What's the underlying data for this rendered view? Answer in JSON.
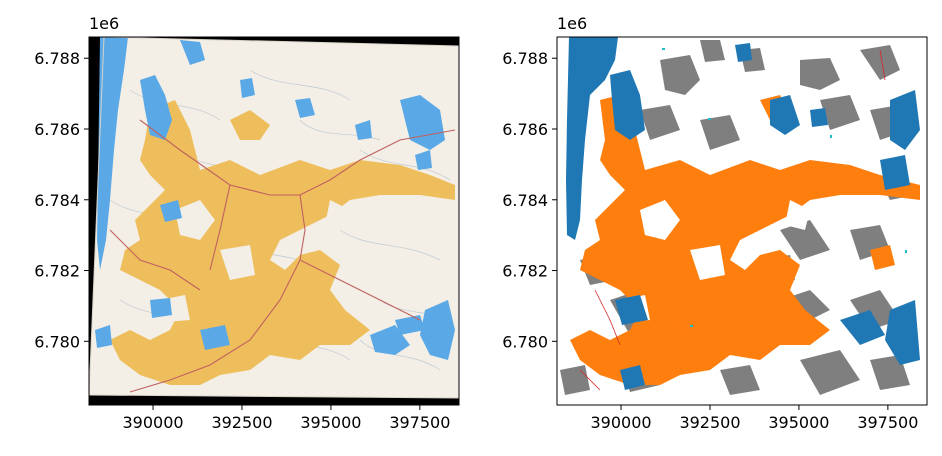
{
  "chart_data": [
    {
      "type": "heatmap",
      "description_role": "scanned topographic map raster",
      "x_ticks": [
        390000,
        392500,
        395000,
        397500
      ],
      "x_tick_labels": [
        "390000",
        "392500",
        "395000",
        "397500"
      ],
      "y_ticks": [
        6780000,
        6782000,
        6784000,
        6786000,
        6788000
      ],
      "y_tick_labels": [
        "6.780",
        "6.782",
        "6.784",
        "6.786",
        "6.788"
      ],
      "y_offset_label": "1e6",
      "xlim": [
        388200,
        398600
      ],
      "ylim": [
        6778200,
        6788600
      ],
      "grid": false,
      "colors": {
        "background": "#000000",
        "paper": "#f3eee6",
        "water": "#5aa9e6",
        "urban": "#efbe5c",
        "roads": "#c06060",
        "contours": "#a9bccc"
      }
    },
    {
      "type": "heatmap",
      "description_role": "classified land cover raster",
      "x_ticks": [
        390000,
        392500,
        395000,
        397500
      ],
      "x_tick_labels": [
        "390000",
        "392500",
        "395000",
        "397500"
      ],
      "y_ticks": [
        6780000,
        6782000,
        6784000,
        6786000,
        6788000
      ],
      "y_tick_labels": [
        "6.780",
        "6.782",
        "6.784",
        "6.786",
        "6.788"
      ],
      "y_offset_label": "1e6",
      "xlim": [
        388200,
        398600
      ],
      "ylim": [
        6778200,
        6788600
      ],
      "grid": false,
      "colors": {
        "background": "#ffffff",
        "water": "#1f77b4",
        "urban": "#ff7f0e",
        "other": "#7f7f7f",
        "roads": "#d62728",
        "misc": "#17becf"
      }
    }
  ]
}
